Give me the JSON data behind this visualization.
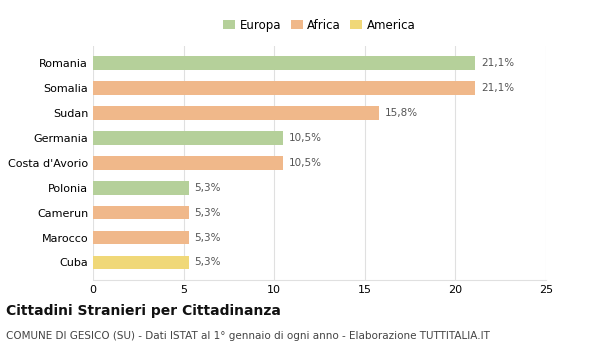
{
  "categories": [
    "Romania",
    "Somalia",
    "Sudan",
    "Germania",
    "Costa d'Avorio",
    "Polonia",
    "Camerun",
    "Marocco",
    "Cuba"
  ],
  "values": [
    21.1,
    21.1,
    15.8,
    10.5,
    10.5,
    5.3,
    5.3,
    5.3,
    5.3
  ],
  "labels": [
    "21,1%",
    "21,1%",
    "15,8%",
    "10,5%",
    "10,5%",
    "5,3%",
    "5,3%",
    "5,3%",
    "5,3%"
  ],
  "colors": [
    "#b5d09a",
    "#f0b88a",
    "#f0b88a",
    "#b5d09a",
    "#f0b88a",
    "#b5d09a",
    "#f0b88a",
    "#f0b88a",
    "#f0d878"
  ],
  "legend_labels": [
    "Europa",
    "Africa",
    "America"
  ],
  "legend_colors": [
    "#b5d09a",
    "#f0b88a",
    "#f0d878"
  ],
  "xlim": [
    0,
    25
  ],
  "xticks": [
    0,
    5,
    10,
    15,
    20,
    25
  ],
  "title": "Cittadini Stranieri per Cittadinanza",
  "subtitle": "COMUNE DI GESICO (SU) - Dati ISTAT al 1° gennaio di ogni anno - Elaborazione TUTTITALIA.IT",
  "title_fontsize": 10,
  "subtitle_fontsize": 7.5,
  "bar_height": 0.55,
  "background_color": "#ffffff",
  "grid_color": "#e0e0e0",
  "label_fontsize": 7.5,
  "tick_fontsize": 8,
  "legend_fontsize": 8.5
}
